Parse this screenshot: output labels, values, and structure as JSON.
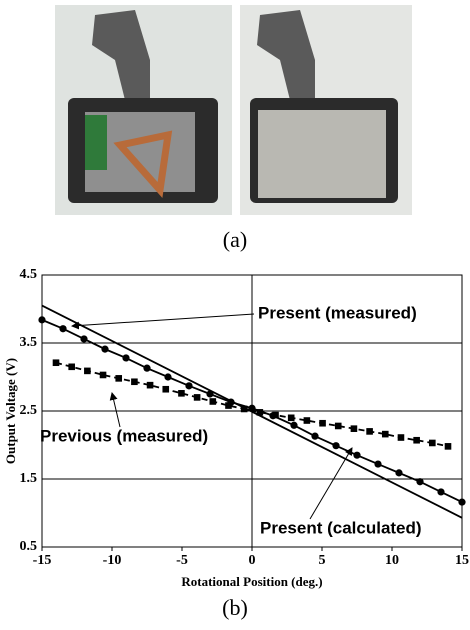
{
  "captions": {
    "a": "(a)",
    "b": "(b)"
  },
  "chart_data": {
    "type": "line",
    "x_label": "Rotational Position (deg.)",
    "y_label": "Output Voltage (V)",
    "xlim": [
      -15,
      15
    ],
    "xticks": [
      -15,
      -10,
      -5,
      0,
      5,
      10,
      15
    ],
    "ylim": [
      0.5,
      4.5
    ],
    "yticks": [
      0.5,
      1.5,
      2.5,
      3.5,
      4.5
    ],
    "grid": true,
    "annotations": [
      "Present (measured)",
      "Previous (measured)",
      "Present (calculated)"
    ],
    "series": [
      {
        "color": "#000000",
        "marker": "circle",
        "dashed": false,
        "x": [
          -15,
          -13.5,
          -12,
          -10.5,
          -9,
          -7.5,
          -6,
          -4.5,
          -3,
          -1.5,
          0,
          1.5,
          3,
          4.5,
          6,
          7.5,
          9,
          10.5,
          12,
          13.5,
          15
        ],
        "values": [
          3.84,
          3.71,
          3.56,
          3.41,
          3.28,
          3.13,
          3.0,
          2.87,
          2.75,
          2.63,
          2.54,
          2.43,
          2.29,
          2.13,
          1.99,
          1.85,
          1.72,
          1.59,
          1.46,
          1.31,
          1.16
        ]
      },
      {
        "color": "#000000",
        "marker": "square",
        "dashed": true,
        "x": [
          -14,
          -12.88,
          -11.76,
          -10.64,
          -9.52,
          -8.4,
          -7.28,
          -6.16,
          -5.04,
          -3.92,
          -2.8,
          -1.68,
          -0.56,
          0.56,
          1.68,
          2.8,
          3.92,
          5.04,
          6.16,
          7.28,
          8.4,
          9.52,
          10.64,
          11.76,
          12.88,
          14
        ],
        "values": [
          3.21,
          3.15,
          3.09,
          3.03,
          2.98,
          2.93,
          2.88,
          2.82,
          2.76,
          2.7,
          2.64,
          2.58,
          2.53,
          2.48,
          2.44,
          2.4,
          2.36,
          2.32,
          2.28,
          2.24,
          2.2,
          2.16,
          2.11,
          2.07,
          2.03,
          1.98
        ]
      },
      {
        "color": "#000000",
        "marker": "none",
        "dashed": false,
        "x": [
          -15,
          15
        ],
        "values": [
          4.05,
          0.93
        ]
      }
    ]
  }
}
